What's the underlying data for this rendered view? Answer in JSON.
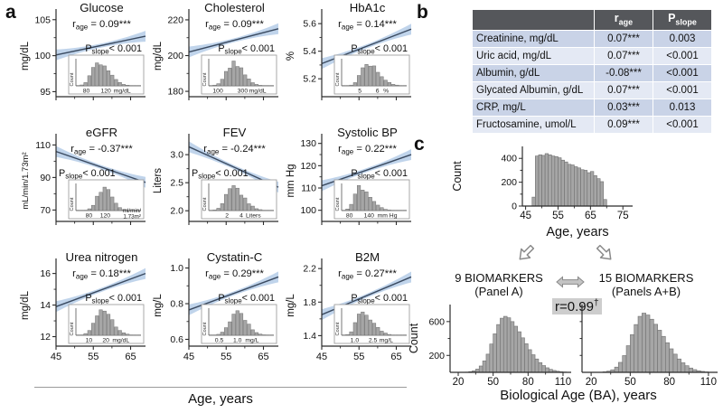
{
  "labels": {
    "panel_a": "a",
    "panel_b": "b",
    "panel_c": "c"
  },
  "colors": {
    "trend_line": "#3a4a60",
    "ci_band": "#b5cce8",
    "hist_fill": "#a6a6a6",
    "hist_edge": "#707070",
    "axis": "#2b2b2b",
    "table_header_bg": "#55575b",
    "table_row_odd": "#c9d3e7",
    "table_row_even": "#e4e9f4",
    "corr_bg": "#cdcdcd"
  },
  "chart_data": {
    "panel_a": {
      "type": "line",
      "x_label": "Age, years",
      "xlim": [
        45,
        69
      ],
      "xticks": [
        45,
        55,
        65
      ],
      "xminors": [
        50,
        60
      ],
      "inset_count_label": "Count",
      "plots": [
        {
          "title": "Glucose",
          "unit": "mg/dL",
          "r_value": "0.09***",
          "p_value": "< 0.001",
          "p_side": "right",
          "ylim": [
            94.3,
            105.6
          ],
          "yticks": [
            {
              "v": 95,
              "t": "95"
            },
            {
              "v": 100,
              "t": "100"
            },
            {
              "v": 105,
              "t": "105"
            }
          ],
          "trend": {
            "x": [
              45,
              69
            ],
            "y": [
              100.1,
              102.7
            ]
          },
          "inset": {
            "labels": [
              {
                "t": "80",
                "f": 0.16
              },
              {
                "t": "120",
                "f": 0.46
              },
              {
                "t": "mg/dL",
                "f": 0.58,
                "unit": true
              }
            ],
            "peak_f": 0.34,
            "spread_l": 0.1,
            "spread_r": 0.17
          }
        },
        {
          "title": "Cholesterol",
          "unit": "mg/dL",
          "r_value": "0.09***",
          "p_value": "< 0.001",
          "p_side": "right",
          "ylim": [
            177,
            222.5
          ],
          "yticks": [
            {
              "v": 180,
              "t": "180"
            },
            {
              "v": 200,
              "t": "200"
            },
            {
              "v": 220,
              "t": "220"
            }
          ],
          "trend": {
            "x": [
              45,
              69
            ],
            "y": [
              202,
              215
            ]
          },
          "inset": {
            "labels": [
              {
                "t": "100",
                "f": 0.14
              },
              {
                "t": "300",
                "f": 0.52
              },
              {
                "t": "mg/dL",
                "f": 0.62,
                "unit": true
              }
            ],
            "peak_f": 0.38,
            "spread_l": 0.11,
            "spread_r": 0.15
          }
        },
        {
          "title": "HbA1c",
          "unit": "%",
          "r_value": "0.14***",
          "p_value": "< 0.001",
          "p_side": "right",
          "ylim": [
            5.07,
            5.66
          ],
          "yticks": [
            {
              "v": 5.2,
              "t": "5.2"
            },
            {
              "v": 5.4,
              "t": "5.4"
            },
            {
              "v": 5.6,
              "t": "5.6"
            }
          ],
          "trend": {
            "x": [
              45,
              69
            ],
            "y": [
              5.31,
              5.56
            ]
          },
          "inset": {
            "labels": [
              {
                "t": "5",
                "f": 0.28
              },
              {
                "t": "6",
                "f": 0.55
              },
              {
                "t": "%",
                "f": 0.64,
                "unit": true
              }
            ],
            "peak_f": 0.38,
            "spread_l": 0.09,
            "spread_r": 0.18
          }
        },
        {
          "title": "eGFR",
          "unit": "mL/min/1.73m²",
          "r_value": "-0.37***",
          "p_value": "< 0.001",
          "p_side": "left",
          "ylim": [
            63,
            113
          ],
          "yticks": [
            {
              "v": 70,
              "t": "70"
            },
            {
              "v": 90,
              "t": "90"
            },
            {
              "v": 110,
              "t": "110"
            }
          ],
          "trend": {
            "x": [
              45,
              69
            ],
            "y": [
              106,
              87
            ]
          },
          "inset": {
            "labels": [
              {
                "t": "80",
                "f": 0.2
              },
              {
                "t": "120",
                "f": 0.45
              }
            ],
            "unit_lines": [
              "ml/min/",
              "1.73m²"
            ],
            "peak_f": 0.43,
            "spread_l": 0.1,
            "spread_r": 0.12
          }
        },
        {
          "title": "FEV",
          "unit": "Liters",
          "r_value": "-0.24***",
          "p_value": "< 0.001",
          "p_side": "left",
          "ylim": [
            1.81,
            3.26
          ],
          "yticks": [
            {
              "v": 2.0,
              "t": "2.0"
            },
            {
              "v": 2.5,
              "t": "2.5"
            },
            {
              "v": 3.0,
              "t": "3.0"
            }
          ],
          "trend": {
            "x": [
              45,
              69
            ],
            "y": [
              3.14,
              2.42
            ]
          },
          "inset": {
            "labels": [
              {
                "t": "2",
                "f": 0.28
              },
              {
                "t": "4",
                "f": 0.5
              },
              {
                "t": "Liters",
                "f": 0.57,
                "unit": true
              }
            ],
            "peak_f": 0.36,
            "spread_l": 0.1,
            "spread_r": 0.17
          }
        },
        {
          "title": "Systolic BP",
          "unit": "mm Hg",
          "r_value": "0.22***",
          "p_value": "< 0.001",
          "p_side": "right",
          "ylim": [
            95,
            131.5
          ],
          "yticks": [
            {
              "v": 100,
              "t": "100"
            },
            {
              "v": 110,
              "t": "110"
            },
            {
              "v": 120,
              "t": "120"
            },
            {
              "v": 130,
              "t": "130"
            }
          ],
          "trend": {
            "x": [
              45,
              69
            ],
            "y": [
              111,
              125
            ]
          },
          "inset": {
            "labels": [
              {
                "t": "80",
                "f": 0.12
              },
              {
                "t": "140",
                "f": 0.42
              },
              {
                "t": "mm Hg",
                "f": 0.55,
                "unit": true
              }
            ],
            "peak_f": 0.27,
            "spread_l": 0.08,
            "spread_r": 0.17
          }
        },
        {
          "title": "Urea nitrogen",
          "unit": "mg/dL",
          "r_value": "0.18***",
          "p_value": "< 0.001",
          "p_side": "right",
          "ylim": [
            11.4,
            16.55
          ],
          "yticks": [
            {
              "v": 12,
              "t": "12"
            },
            {
              "v": 14,
              "t": "14"
            },
            {
              "v": 16,
              "t": "16"
            }
          ],
          "trend": {
            "x": [
              45,
              69
            ],
            "y": [
              13.9,
              16.0
            ]
          },
          "inset": {
            "labels": [
              {
                "t": "10",
                "f": 0.2
              },
              {
                "t": "20",
                "f": 0.46
              },
              {
                "t": "mg/dL",
                "f": 0.56,
                "unit": true
              }
            ],
            "peak_f": 0.4,
            "spread_l": 0.11,
            "spread_r": 0.16
          }
        },
        {
          "title": "Cystatin-C",
          "unit": "mg/L",
          "r_value": "0.29***",
          "p_value": "< 0.001",
          "p_side": "right",
          "ylim": [
            0.562,
            1.018
          ],
          "yticks": [
            {
              "v": 0.6,
              "t": "0.6"
            },
            {
              "v": 0.8,
              "t": "0.8"
            },
            {
              "v": 1.0,
              "t": "1.0"
            }
          ],
          "trend": {
            "x": [
              45,
              69
            ],
            "y": [
              0.765,
              0.95
            ]
          },
          "inset": {
            "labels": [
              {
                "t": "0.5",
                "f": 0.16
              },
              {
                "t": "1.0",
                "f": 0.44
              },
              {
                "t": "mg/L",
                "f": 0.56,
                "unit": true
              }
            ],
            "peak_f": 0.43,
            "spread_l": 0.11,
            "spread_r": 0.15
          }
        },
        {
          "title": "B2M",
          "unit": "mg/L",
          "r_value": "0.27***",
          "p_value": "< 0.001",
          "p_side": "right",
          "ylim": [
            1.275,
            2.245
          ],
          "yticks": [
            {
              "v": 1.4,
              "t": "1.4"
            },
            {
              "v": 1.8,
              "t": "1.8"
            },
            {
              "v": 2.2,
              "t": "2.2"
            }
          ],
          "trend": {
            "x": [
              45,
              69
            ],
            "y": [
              1.65,
              2.1
            ]
          },
          "inset": {
            "labels": [
              {
                "t": "1.0",
                "f": 0.2
              },
              {
                "t": "2.5",
                "f": 0.48
              },
              {
                "t": "mg/L",
                "f": 0.58,
                "unit": true
              }
            ],
            "peak_f": 0.3,
            "spread_l": 0.08,
            "spread_r": 0.17
          }
        }
      ]
    },
    "panel_b": {
      "type": "table",
      "headers": [
        {
          "main": "",
          "sub": ""
        },
        {
          "main": "r",
          "sub": "age"
        },
        {
          "main": "P",
          "sub": "slope"
        }
      ],
      "rows": [
        {
          "name": "Creatinine, mg/dL",
          "r_age": "0.07***",
          "p_slope": "0.003"
        },
        {
          "name": "Uric acid, mg/dL",
          "r_age": "0.07***",
          "p_slope": "<0.001"
        },
        {
          "name": "Albumin, g/dL",
          "r_age": "-0.08***",
          "p_slope": "<0.001"
        },
        {
          "name": "Glycated Albumin, g/dL",
          "r_age": "0.07***",
          "p_slope": "<0.001"
        },
        {
          "name": "CRP, mg/L",
          "r_age": "0.03***",
          "p_slope": "0.013"
        },
        {
          "name": "Fructosamine, umol/L",
          "r_age": "0.09***",
          "p_slope": "<0.001"
        }
      ]
    },
    "panel_c": {
      "age_hist": {
        "type": "bar",
        "ylabel": "Count",
        "xlabel": "Age, years",
        "yticks": [
          {
            "v": 0,
            "t": "0"
          },
          {
            "v": 100,
            "t": null
          },
          {
            "v": 200,
            "t": "200"
          },
          {
            "v": 300,
            "t": null
          },
          {
            "v": 400,
            "t": "400"
          }
        ],
        "ymax": 470,
        "xlim": [
          44,
          78
        ],
        "xticks": [
          {
            "v": 45,
            "t": "45"
          },
          {
            "v": 55,
            "t": "55"
          },
          {
            "v": 65,
            "t": "65"
          },
          {
            "v": 75,
            "t": "75"
          }
        ],
        "xminors": [
          50,
          60,
          70
        ],
        "bin_start": 47,
        "bin_width": 1,
        "values": [
          75,
          420,
          430,
          425,
          440,
          430,
          420,
          415,
          405,
          385,
          370,
          350,
          345,
          330,
          320,
          305,
          300,
          280,
          290,
          255,
          230,
          205,
          55
        ]
      },
      "left_label_1": "9 BIOMARKERS",
      "left_label_2": "(Panel A)",
      "right_label_1": "15 BIOMARKERS",
      "right_label_2": "(Panels A+B)",
      "corr_main": "r=0.99",
      "corr_sup": "†",
      "ba_xlabel": "Biological Age (BA), years",
      "ba_left": {
        "type": "bar",
        "ylabel": "Count",
        "yticks": [
          {
            "v": 200,
            "t": "200"
          },
          {
            "v": 400,
            "t": null
          },
          {
            "v": 600,
            "t": "600"
          }
        ],
        "ymax": 780,
        "xlim": [
          13,
          117
        ],
        "xticks": [
          {
            "v": 20,
            "t": "20"
          },
          {
            "v": 50,
            "t": "50"
          },
          {
            "v": 80,
            "t": "80"
          },
          {
            "v": 110,
            "t": "110"
          }
        ],
        "xminors": [
          35,
          65,
          95
        ],
        "bin_start": 26,
        "bin_width": 3,
        "values": [
          3,
          8,
          18,
          38,
          75,
          135,
          215,
          335,
          455,
          565,
          640,
          662,
          645,
          600,
          545,
          480,
          408,
          338,
          268,
          208,
          158,
          115,
          80,
          54,
          35,
          22,
          13,
          7,
          4
        ]
      },
      "ba_right": {
        "type": "bar",
        "ylabel": "",
        "yticks": [
          {
            "v": 200,
            "t": null
          },
          {
            "v": 400,
            "t": null
          },
          {
            "v": 600,
            "t": null
          }
        ],
        "ymax": 780,
        "xlim": [
          13,
          117
        ],
        "xticks": [
          {
            "v": 20,
            "t": "20"
          },
          {
            "v": 50,
            "t": "50"
          },
          {
            "v": 80,
            "t": "80"
          },
          {
            "v": 110,
            "t": "110"
          }
        ],
        "xminors": [
          35,
          65,
          95
        ],
        "bin_start": 26,
        "bin_width": 3,
        "values": [
          2,
          6,
          14,
          30,
          62,
          118,
          198,
          315,
          445,
          565,
          662,
          700,
          678,
          628,
          568,
          498,
          425,
          350,
          278,
          215,
          158,
          113,
          78,
          51,
          32,
          19,
          11,
          5,
          2
        ]
      }
    }
  }
}
